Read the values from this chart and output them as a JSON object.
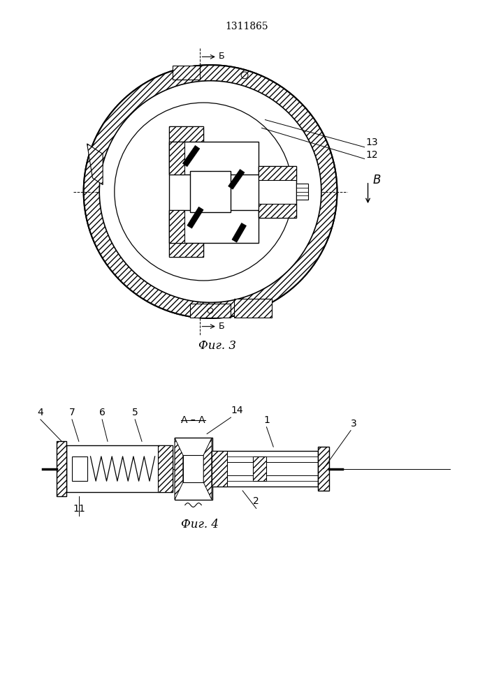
{
  "title": "1311865",
  "title_fontsize": 11,
  "fig3_label": "Фиг. 3",
  "fig4_label": "Фиг. 4",
  "bg_color": "#ffffff",
  "line_color": "#000000"
}
